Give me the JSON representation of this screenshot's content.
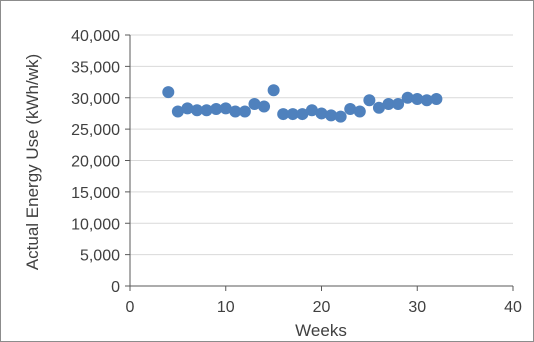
{
  "chart_data": {
    "type": "scatter",
    "title": "",
    "xlabel": "Weeks",
    "ylabel": "Actual Energy Use (kWh/wk)",
    "xlim": [
      0,
      40
    ],
    "ylim": [
      0,
      40000
    ],
    "xticks": [
      0,
      10,
      20,
      30,
      40
    ],
    "yticks": [
      0,
      5000,
      10000,
      15000,
      20000,
      25000,
      30000,
      35000,
      40000
    ],
    "xtick_labels": [
      "0",
      "10",
      "20",
      "30",
      "40"
    ],
    "ytick_labels": [
      "0",
      "5,000",
      "10,000",
      "15,000",
      "20,000",
      "25,000",
      "30,000",
      "35,000",
      "40,000"
    ],
    "grid": "horizontal",
    "legend": "none",
    "marker_color": "#4f81bd",
    "series": [
      {
        "x": [
          4,
          5,
          6,
          7,
          8,
          9,
          10,
          11,
          12,
          13,
          14,
          15,
          16,
          17,
          18,
          19,
          20,
          21,
          22,
          23,
          24,
          25,
          26,
          27,
          28,
          29,
          30,
          31,
          32
        ],
        "y": [
          30900,
          27800,
          28300,
          28000,
          28000,
          28200,
          28300,
          27800,
          27800,
          29000,
          28600,
          31200,
          27400,
          27400,
          27400,
          28000,
          27500,
          27200,
          27000,
          28200,
          27800,
          29600,
          28400,
          29000,
          29000,
          30000,
          29800,
          29600,
          29800
        ]
      }
    ]
  }
}
